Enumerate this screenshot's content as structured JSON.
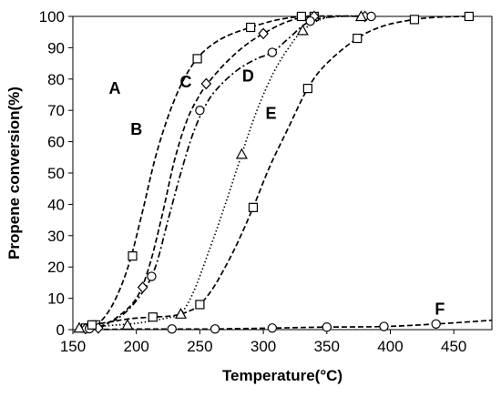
{
  "chart_data": {
    "type": "line",
    "title": "",
    "xlabel": "Temperature(°C)",
    "ylabel": "Propene conversion(%)",
    "xlim": [
      150,
      480
    ],
    "ylim": [
      0,
      100
    ],
    "xticks": [
      150,
      200,
      250,
      300,
      350,
      400,
      450
    ],
    "yticks": [
      0,
      10,
      20,
      30,
      40,
      50,
      60,
      70,
      80,
      90,
      100
    ],
    "grid": false,
    "legend": "none",
    "series": [
      {
        "name": "A",
        "marker": "square",
        "dash": "dash",
        "label_at": [
          183,
          77
        ],
        "points": [
          [
            160,
            0.5
          ],
          [
            168,
            1.5
          ],
          [
            197,
            23.5
          ],
          [
            248,
            86.5
          ],
          [
            290,
            96.5
          ],
          [
            330,
            100
          ],
          [
            340,
            100
          ]
        ],
        "curve": [
          [
            155,
            0
          ],
          [
            165,
            0.8
          ],
          [
            175,
            4
          ],
          [
            185,
            11
          ],
          [
            195,
            22
          ],
          [
            205,
            38
          ],
          [
            215,
            55
          ],
          [
            225,
            68
          ],
          [
            235,
            78
          ],
          [
            245,
            85
          ],
          [
            255,
            89.5
          ],
          [
            270,
            93.5
          ],
          [
            290,
            96.5
          ],
          [
            310,
            98.8
          ],
          [
            330,
            100
          ],
          [
            340,
            100
          ]
        ]
      },
      {
        "name": "B",
        "marker": "diamond",
        "dash": "dash",
        "label_at": [
          200,
          64
        ],
        "points": [
          [
            160,
            0.3
          ],
          [
            170,
            0.5
          ],
          [
            205,
            13.5
          ],
          [
            255,
            78.5
          ],
          [
            300,
            94.5
          ],
          [
            340,
            100
          ],
          [
            380,
            100
          ]
        ],
        "curve": [
          [
            158,
            0
          ],
          [
            170,
            0.8
          ],
          [
            185,
            4
          ],
          [
            200,
            10
          ],
          [
            210,
            20
          ],
          [
            220,
            36
          ],
          [
            230,
            54
          ],
          [
            240,
            67
          ],
          [
            250,
            75
          ],
          [
            258,
            79.5
          ],
          [
            270,
            85
          ],
          [
            285,
            90.5
          ],
          [
            300,
            94.5
          ],
          [
            320,
            98.5
          ],
          [
            340,
            100
          ],
          [
            380,
            100
          ]
        ]
      },
      {
        "name": "C",
        "marker": "circle",
        "dash": "dashdot",
        "label_at": [
          239,
          79
        ],
        "points": [
          [
            163,
            0.3
          ],
          [
            212,
            17
          ],
          [
            250,
            70
          ],
          [
            307,
            88.5
          ],
          [
            337,
            98.5
          ],
          [
            385,
            100
          ]
        ],
        "curve": [
          [
            160,
            0
          ],
          [
            172,
            0.8
          ],
          [
            190,
            5
          ],
          [
            205,
            12
          ],
          [
            215,
            20
          ],
          [
            225,
            35
          ],
          [
            235,
            50
          ],
          [
            245,
            63
          ],
          [
            255,
            72
          ],
          [
            265,
            77.5
          ],
          [
            280,
            83
          ],
          [
            295,
            86.5
          ],
          [
            307,
            88.5
          ],
          [
            320,
            93
          ],
          [
            337,
            98.5
          ],
          [
            360,
            100
          ],
          [
            385,
            100
          ]
        ]
      },
      {
        "name": "D",
        "marker": "triangle",
        "dash": "dot",
        "label_at": [
          288,
          81
        ],
        "points": [
          [
            155,
            0.5
          ],
          [
            193,
            1.5
          ],
          [
            235,
            5
          ],
          [
            283,
            56
          ],
          [
            331,
            95.5
          ],
          [
            377,
            100
          ]
        ],
        "curve": [
          [
            155,
            0.5
          ],
          [
            170,
            1
          ],
          [
            185,
            1.5
          ],
          [
            200,
            2
          ],
          [
            215,
            3
          ],
          [
            228,
            4
          ],
          [
            235,
            5
          ],
          [
            245,
            12
          ],
          [
            258,
            26
          ],
          [
            270,
            40
          ],
          [
            283,
            56
          ],
          [
            295,
            70
          ],
          [
            308,
            82
          ],
          [
            320,
            90
          ],
          [
            331,
            95.5
          ],
          [
            345,
            99
          ],
          [
            360,
            100
          ],
          [
            377,
            100
          ]
        ]
      },
      {
        "name": "E",
        "marker": "square",
        "dash": "dash",
        "label_at": [
          306,
          69
        ],
        "points": [
          [
            165,
            1.5
          ],
          [
            213,
            4
          ],
          [
            250,
            8
          ],
          [
            292,
            39
          ],
          [
            335,
            77
          ],
          [
            374,
            93
          ],
          [
            419,
            99
          ],
          [
            462,
            100
          ]
        ],
        "curve": [
          [
            165,
            1.5
          ],
          [
            180,
            2.5
          ],
          [
            195,
            3.5
          ],
          [
            213,
            4
          ],
          [
            230,
            4.5
          ],
          [
            242,
            6
          ],
          [
            250,
            8
          ],
          [
            260,
            13
          ],
          [
            270,
            20
          ],
          [
            280,
            28
          ],
          [
            292,
            39
          ],
          [
            305,
            52
          ],
          [
            318,
            63
          ],
          [
            335,
            77
          ],
          [
            350,
            85
          ],
          [
            374,
            93
          ],
          [
            395,
            97
          ],
          [
            419,
            99
          ],
          [
            440,
            99.8
          ],
          [
            462,
            100
          ]
        ]
      },
      {
        "name": "F",
        "marker": "circle",
        "dash": "dash",
        "label_at": [
          439,
          6.5
        ],
        "points": [
          [
            228,
            0.2
          ],
          [
            262,
            0.2
          ],
          [
            307,
            0.5
          ],
          [
            350,
            0.8
          ],
          [
            395,
            1
          ],
          [
            436,
            1.8
          ]
        ],
        "curve": [
          [
            155,
            0
          ],
          [
            180,
            0.1
          ],
          [
            200,
            0.2
          ],
          [
            228,
            0.2
          ],
          [
            262,
            0.2
          ],
          [
            307,
            0.5
          ],
          [
            350,
            0.8
          ],
          [
            395,
            1
          ],
          [
            436,
            1.8
          ],
          [
            480,
            3
          ]
        ]
      }
    ]
  }
}
